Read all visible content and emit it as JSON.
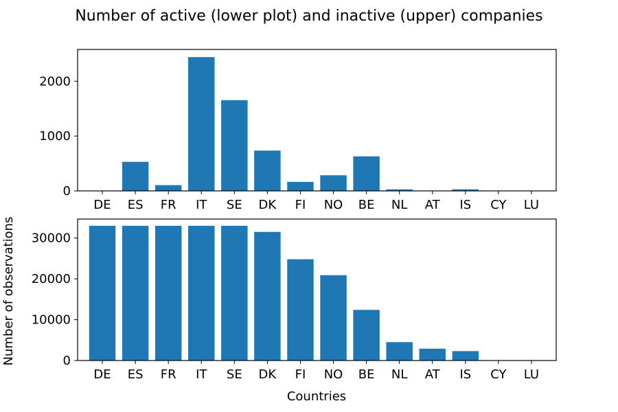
{
  "figure": {
    "title": "Number of active (lower plot) and inactive (upper) companies",
    "ylabel": "Number of observations",
    "xlabel": "Countries"
  },
  "chart_data": [
    {
      "type": "bar",
      "title": "",
      "xlabel": "",
      "ylabel": "",
      "categories": [
        "DE",
        "ES",
        "FR",
        "IT",
        "SE",
        "DK",
        "FI",
        "NO",
        "BE",
        "NL",
        "AT",
        "IS",
        "CY",
        "LU"
      ],
      "values": [
        0,
        530,
        105,
        2440,
        1655,
        735,
        165,
        285,
        630,
        28,
        5,
        28,
        0,
        0
      ],
      "ylim": [
        0,
        2580
      ],
      "yticks": [
        0,
        1000,
        2000
      ],
      "color": "#1f77b4",
      "grid": false
    },
    {
      "type": "bar",
      "title": "",
      "xlabel": "Countries",
      "ylabel": "Number of observations",
      "categories": [
        "DE",
        "ES",
        "FR",
        "IT",
        "SE",
        "DK",
        "FI",
        "NO",
        "BE",
        "NL",
        "AT",
        "IS",
        "CY",
        "LU"
      ],
      "values": [
        33000,
        33000,
        33000,
        33000,
        33000,
        31500,
        24800,
        20900,
        12400,
        4500,
        2900,
        2300,
        0,
        0
      ],
      "ylim": [
        0,
        34650
      ],
      "yticks": [
        0,
        10000,
        20000,
        30000
      ],
      "color": "#1f77b4",
      "grid": false
    }
  ]
}
